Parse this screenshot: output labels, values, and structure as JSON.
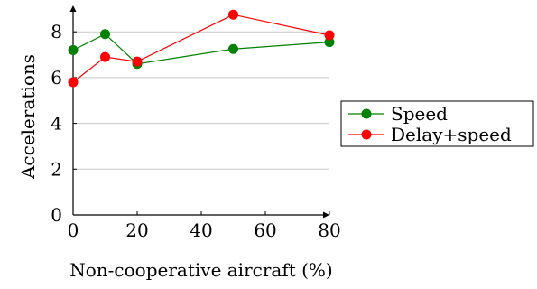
{
  "chart_data": {
    "type": "line",
    "title": "",
    "xlabel": "Non-cooperative aircraft (%)",
    "ylabel": "Accelerations",
    "xlim": [
      0,
      80
    ],
    "ylim": [
      0,
      8.6
    ],
    "xticks": [
      0,
      20,
      40,
      60,
      80
    ],
    "yticks": [
      0,
      2,
      4,
      6,
      8
    ],
    "grid": "horizontal",
    "legend_position": "right",
    "series": [
      {
        "name": "Speed",
        "color": "#008000",
        "x": [
          0,
          10,
          20,
          50,
          80
        ],
        "y": [
          7.2,
          7.9,
          6.6,
          7.25,
          7.55
        ]
      },
      {
        "name": "Delay+speed",
        "color": "#ff0000",
        "x": [
          0,
          10,
          20,
          50,
          80
        ],
        "y": [
          5.8,
          6.9,
          6.7,
          8.75,
          7.85
        ]
      }
    ]
  }
}
